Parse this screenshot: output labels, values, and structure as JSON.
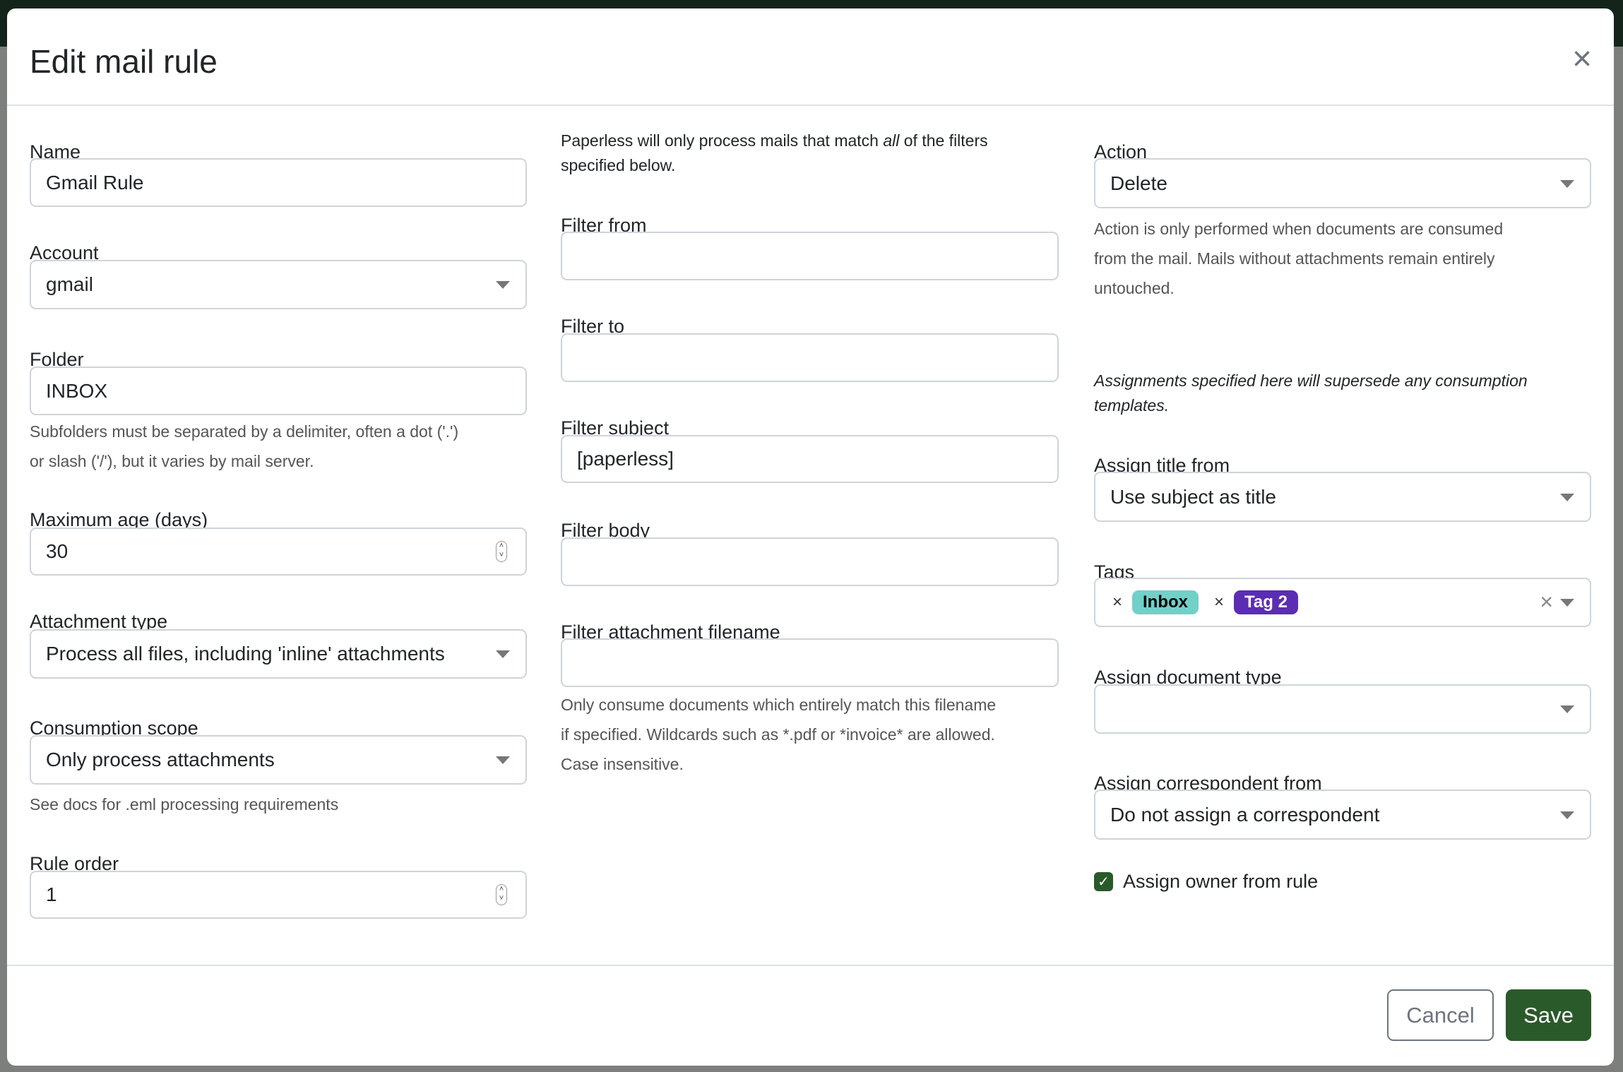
{
  "modal": {
    "title": "Edit mail rule",
    "close_icon": "close-icon"
  },
  "left": {
    "name": {
      "label": "Name",
      "value": "Gmail Rule"
    },
    "account": {
      "label": "Account",
      "value": "gmail"
    },
    "folder": {
      "label": "Folder",
      "value": "INBOX",
      "help1": "Subfolders must be separated by a delimiter, often a dot ('.')",
      "help2": "or slash ('/'), but it varies by mail server."
    },
    "max_age": {
      "label": "Maximum age (days)",
      "value": "30"
    },
    "attachment_type": {
      "label": "Attachment type",
      "value": "Process all files, including 'inline' attachments"
    },
    "consumption_scope": {
      "label": "Consumption scope",
      "value": "Only process attachments",
      "help": "See docs for .eml processing requirements"
    },
    "rule_order": {
      "label": "Rule order",
      "value": "1"
    }
  },
  "middle": {
    "intro_pre": "Paperless will only process mails that match ",
    "intro_em": "all",
    "intro_post": " of the filters",
    "intro_line2": "specified below.",
    "filter_from": {
      "label": "Filter from",
      "value": ""
    },
    "filter_to": {
      "label": "Filter to",
      "value": ""
    },
    "filter_subject": {
      "label": "Filter subject",
      "value": "[paperless]"
    },
    "filter_body": {
      "label": "Filter body",
      "value": ""
    },
    "filter_attachment": {
      "label": "Filter attachment filename",
      "value": "",
      "help1": "Only consume documents which entirely match this filename",
      "help2": "if specified. Wildcards such as *.pdf or *invoice* are allowed.",
      "help3": "Case insensitive."
    }
  },
  "right": {
    "action": {
      "label": "Action",
      "value": "Delete",
      "help1": "Action is only performed when documents are consumed",
      "help2": "from the mail. Mails without attachments remain entirely",
      "help3": "untouched."
    },
    "note1": "Assignments specified here will supersede any consumption",
    "note2": "templates.",
    "assign_title": {
      "label": "Assign title from",
      "value": "Use subject as title"
    },
    "tags": {
      "label": "Tags",
      "items": [
        {
          "label": "Inbox",
          "bg": "#71d0c8",
          "fg": "#000000"
        },
        {
          "label": "Tag 2",
          "bg": "#5b2db3",
          "fg": "#ffffff"
        }
      ],
      "remove_glyph": "×"
    },
    "doc_type": {
      "label": "Assign document type",
      "value": ""
    },
    "correspondent": {
      "label": "Assign correspondent from",
      "value": "Do not assign a correspondent"
    },
    "owner": {
      "label": "Assign owner from rule",
      "checked": true
    }
  },
  "footer": {
    "cancel": "Cancel",
    "save": "Save"
  },
  "colors": {
    "primary": "#2a5a2a",
    "overlay": "#7d7f7d",
    "topbar": "#14241a"
  }
}
